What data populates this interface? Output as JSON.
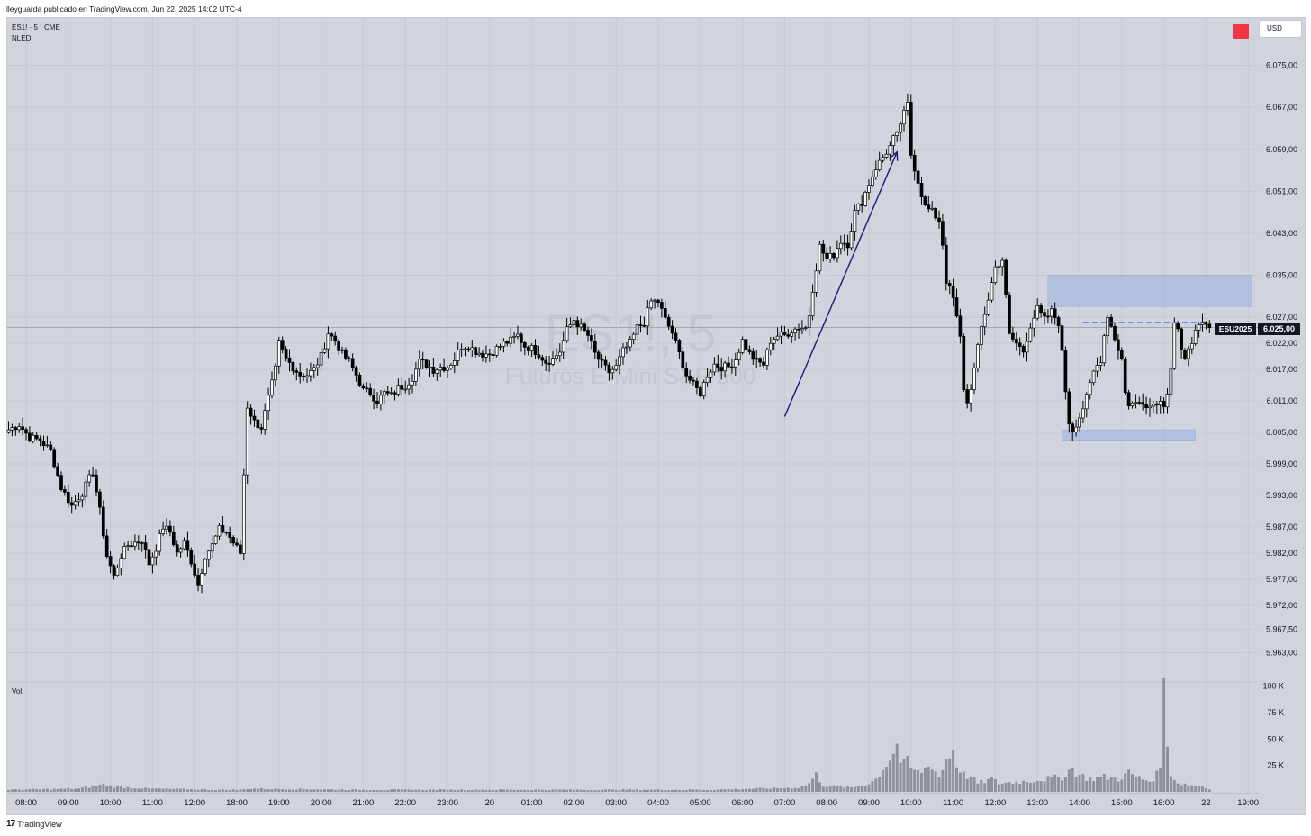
{
  "header": {
    "published_by": "lleyguarda publicado en TradingView.com, Jun 22, 2025 14:02 UTC-4"
  },
  "legend": {
    "symbol_line": "ES1! · 5 · CME",
    "indicator": "NLED",
    "volume_label": "Vol."
  },
  "watermark": {
    "ticker": "ES1!, 5",
    "name": "Futuros E-Mini S&P 500"
  },
  "controls": {
    "currency": "USD",
    "alert_color": "#f23645"
  },
  "price_labels": {
    "symbol": "ESU2025",
    "last": "6.025,00"
  },
  "footer": {
    "brand": "TradingView"
  },
  "chart_data": {
    "type": "candlestick",
    "interval": "5",
    "last_price": 6025.0,
    "y_axis": {
      "ticks": [
        {
          "value": 6075.0,
          "label": "6.075,00"
        },
        {
          "value": 6067.0,
          "label": "6.067,00"
        },
        {
          "value": 6059.0,
          "label": "6.059,00"
        },
        {
          "value": 6051.0,
          "label": "6.051,00"
        },
        {
          "value": 6043.0,
          "label": "6.043,00"
        },
        {
          "value": 6035.0,
          "label": "6.035,00"
        },
        {
          "value": 6027.0,
          "label": "6.027,00"
        },
        {
          "value": 6022.0,
          "label": "6.022,00"
        },
        {
          "value": 6017.0,
          "label": "6.017,00"
        },
        {
          "value": 6011.0,
          "label": "6.011,00"
        },
        {
          "value": 6005.0,
          "label": "6.005,00"
        },
        {
          "value": 5999.0,
          "label": "5.999,00"
        },
        {
          "value": 5993.0,
          "label": "5.993,00"
        },
        {
          "value": 5987.0,
          "label": "5.987,00"
        },
        {
          "value": 5982.0,
          "label": "5.982,00"
        },
        {
          "value": 5977.0,
          "label": "5.977,00"
        },
        {
          "value": 5972.0,
          "label": "5.972,00"
        },
        {
          "value": 5967.5,
          "label": "5.967,50"
        },
        {
          "value": 5963.0,
          "label": "5.963,00"
        }
      ]
    },
    "volume_axis": {
      "ticks": [
        {
          "value": 100,
          "label": "100 K"
        },
        {
          "value": 75,
          "label": "75 K"
        },
        {
          "value": 50,
          "label": "50 K"
        },
        {
          "value": 25,
          "label": "25 K"
        }
      ]
    },
    "x_axis": {
      "ticks": [
        {
          "bar": 5,
          "label": "08:00"
        },
        {
          "bar": 17,
          "label": "09:00"
        },
        {
          "bar": 29,
          "label": "10:00"
        },
        {
          "bar": 41,
          "label": "11:00"
        },
        {
          "bar": 53,
          "label": "12:00"
        },
        {
          "bar": 65,
          "label": "18:00"
        },
        {
          "bar": 77,
          "label": "19:00"
        },
        {
          "bar": 89,
          "label": "20:00"
        },
        {
          "bar": 101,
          "label": "21:00"
        },
        {
          "bar": 113,
          "label": "22:00"
        },
        {
          "bar": 125,
          "label": "23:00"
        },
        {
          "bar": 137,
          "label": "20"
        },
        {
          "bar": 149,
          "label": "01:00"
        },
        {
          "bar": 161,
          "label": "02:00"
        },
        {
          "bar": 173,
          "label": "03:00"
        },
        {
          "bar": 185,
          "label": "04:00"
        },
        {
          "bar": 197,
          "label": "05:00"
        },
        {
          "bar": 209,
          "label": "06:00"
        },
        {
          "bar": 221,
          "label": "07:00"
        },
        {
          "bar": 233,
          "label": "08:00"
        },
        {
          "bar": 245,
          "label": "09:00"
        },
        {
          "bar": 257,
          "label": "10:00"
        },
        {
          "bar": 269,
          "label": "11:00"
        },
        {
          "bar": 281,
          "label": "12:00"
        },
        {
          "bar": 293,
          "label": "13:00"
        },
        {
          "bar": 305,
          "label": "14:00"
        },
        {
          "bar": 317,
          "label": "15:00"
        },
        {
          "bar": 329,
          "label": "16:00"
        },
        {
          "bar": 341,
          "label": "22"
        },
        {
          "bar": 353,
          "label": "19:00"
        }
      ]
    },
    "close_anchors": [
      [
        0,
        6005.5
      ],
      [
        3,
        6006.5
      ],
      [
        6,
        6004.0
      ],
      [
        9,
        6003.5
      ],
      [
        12,
        6001.5
      ],
      [
        15,
        5994.5
      ],
      [
        18,
        5991.0
      ],
      [
        21,
        5993.5
      ],
      [
        24,
        5997.5
      ],
      [
        26,
        5990.0
      ],
      [
        28,
        5981.5
      ],
      [
        30,
        5977.5
      ],
      [
        32,
        5981.5
      ],
      [
        34,
        5983.5
      ],
      [
        36,
        5984.0
      ],
      [
        38,
        5984.5
      ],
      [
        40,
        5980.0
      ],
      [
        42,
        5983.0
      ],
      [
        44,
        5987.0
      ],
      [
        46,
        5986.0
      ],
      [
        48,
        5982.0
      ],
      [
        50,
        5984.0
      ],
      [
        52,
        5980.5
      ],
      [
        54,
        5976.0
      ],
      [
        56,
        5981.5
      ],
      [
        58,
        5983.5
      ],
      [
        60,
        5986.5
      ],
      [
        62,
        5986.0
      ],
      [
        64,
        5984.0
      ],
      [
        66,
        5982.0
      ],
      [
        67,
        5997.0
      ],
      [
        68,
        6010.0
      ],
      [
        70,
        6007.0
      ],
      [
        72,
        6006.0
      ],
      [
        74,
        6011.5
      ],
      [
        76,
        6017.0
      ],
      [
        77,
        6022.0
      ],
      [
        79,
        6019.0
      ],
      [
        81,
        6017.5
      ],
      [
        83,
        6016.0
      ],
      [
        85,
        6016.0
      ],
      [
        87,
        6017.0
      ],
      [
        89,
        6019.5
      ],
      [
        91,
        6024.0
      ],
      [
        93,
        6022.5
      ],
      [
        95,
        6020.0
      ],
      [
        97,
        6018.5
      ],
      [
        99,
        6016.0
      ],
      [
        101,
        6013.0
      ],
      [
        103,
        6012.5
      ],
      [
        105,
        6011.0
      ],
      [
        107,
        6012.5
      ],
      [
        109,
        6012.0
      ],
      [
        111,
        6013.5
      ],
      [
        113,
        6014.0
      ],
      [
        115,
        6015.5
      ],
      [
        117,
        6018.5
      ],
      [
        119,
        6018.0
      ],
      [
        121,
        6017.0
      ],
      [
        123,
        6017.5
      ],
      [
        125,
        6017.5
      ],
      [
        127,
        6019.0
      ],
      [
        129,
        6021.5
      ],
      [
        131,
        6021.5
      ],
      [
        133,
        6020.5
      ],
      [
        135,
        6020.0
      ],
      [
        137,
        6020.0
      ],
      [
        139,
        6021.0
      ],
      [
        141,
        6022.0
      ],
      [
        143,
        6022.5
      ],
      [
        145,
        6023.5
      ],
      [
        147,
        6021.5
      ],
      [
        149,
        6021.0
      ],
      [
        151,
        6020.0
      ],
      [
        153,
        6018.5
      ],
      [
        155,
        6019.0
      ],
      [
        157,
        6020.5
      ],
      [
        159,
        6024.5
      ],
      [
        161,
        6026.5
      ],
      [
        163,
        6025.0
      ],
      [
        165,
        6023.5
      ],
      [
        167,
        6020.0
      ],
      [
        169,
        6018.0
      ],
      [
        171,
        6016.5
      ],
      [
        173,
        6017.5
      ],
      [
        175,
        6020.5
      ],
      [
        177,
        6022.0
      ],
      [
        179,
        6025.0
      ],
      [
        181,
        6026.0
      ],
      [
        183,
        6030.0
      ],
      [
        185,
        6030.0
      ],
      [
        187,
        6026.5
      ],
      [
        189,
        6024.0
      ],
      [
        191,
        6020.0
      ],
      [
        193,
        6016.0
      ],
      [
        195,
        6014.0
      ],
      [
        197,
        6012.5
      ],
      [
        199,
        6016.0
      ],
      [
        201,
        6018.0
      ],
      [
        203,
        6017.5
      ],
      [
        205,
        6017.5
      ],
      [
        207,
        6019.0
      ],
      [
        209,
        6022.5
      ],
      [
        211,
        6020.0
      ],
      [
        213,
        6018.5
      ],
      [
        215,
        6018.0
      ],
      [
        217,
        6022.5
      ],
      [
        219,
        6023.5
      ],
      [
        221,
        6023.5
      ],
      [
        223,
        6024.5
      ],
      [
        225,
        6025.0
      ],
      [
        227,
        6025.0
      ],
      [
        228,
        6027.5
      ],
      [
        229,
        6032.5
      ],
      [
        231,
        6040.5
      ],
      [
        233,
        6038.0
      ],
      [
        235,
        6039.0
      ],
      [
        237,
        6041.5
      ],
      [
        239,
        6041.0
      ],
      [
        241,
        6047.0
      ],
      [
        243,
        6049.0
      ],
      [
        245,
        6052.5
      ],
      [
        247,
        6055.5
      ],
      [
        249,
        6057.5
      ],
      [
        251,
        6059.5
      ],
      [
        252,
        6061.0
      ],
      [
        253,
        6061.5
      ],
      [
        254,
        6064.0
      ],
      [
        256,
        6067.5
      ],
      [
        257,
        6058.0
      ],
      [
        259,
        6053.0
      ],
      [
        261,
        6048.0
      ],
      [
        263,
        6047.0
      ],
      [
        265,
        6045.5
      ],
      [
        266,
        6041.0
      ],
      [
        267,
        6034.0
      ],
      [
        269,
        6030.5
      ],
      [
        271,
        6023.0
      ],
      [
        272,
        6013.5
      ],
      [
        273,
        6010.5
      ],
      [
        275,
        6017.0
      ],
      [
        277,
        6025.0
      ],
      [
        279,
        6030.5
      ],
      [
        281,
        6036.5
      ],
      [
        283,
        6038.0
      ],
      [
        285,
        6023.5
      ],
      [
        287,
        6022.0
      ],
      [
        289,
        6020.5
      ],
      [
        291,
        6025.5
      ],
      [
        293,
        6028.5
      ],
      [
        295,
        6026.5
      ],
      [
        297,
        6028.0
      ],
      [
        299,
        6026.0
      ],
      [
        300,
        6020.0
      ],
      [
        301,
        6013.0
      ],
      [
        302,
        6007.0
      ],
      [
        303,
        6005.5
      ],
      [
        305,
        6008.0
      ],
      [
        307,
        6011.5
      ],
      [
        309,
        6016.5
      ],
      [
        311,
        6019.0
      ],
      [
        312,
        6023.5
      ],
      [
        313,
        6027.5
      ],
      [
        315,
        6023.0
      ],
      [
        317,
        6019.0
      ],
      [
        318,
        6012.5
      ],
      [
        319,
        6010.5
      ],
      [
        321,
        6010.5
      ],
      [
        323,
        6011.0
      ],
      [
        325,
        6010.0
      ],
      [
        327,
        6011.0
      ],
      [
        329,
        6010.5
      ],
      [
        330,
        6013.0
      ],
      [
        331,
        6017.5
      ],
      [
        332,
        6026.0
      ],
      [
        333,
        6024.5
      ],
      [
        334,
        6020.0
      ],
      [
        335,
        6018.5
      ],
      [
        336,
        6021.5
      ],
      [
        338,
        6024.0
      ],
      [
        340,
        6025.5
      ],
      [
        342,
        6025.0
      ]
    ],
    "gaps": [
      {
        "from": 6005.0,
        "to": 6004.0
      }
    ],
    "annotations": {
      "supply_zone": {
        "from_bar": 296,
        "to_bar": 354,
        "top": 6035.0,
        "bottom": 6029.0
      },
      "demand_zone": {
        "from_bar": 300,
        "to_bar": 338,
        "top": 6005.5,
        "bottom": 6003.5
      },
      "level_high": {
        "from_bar": 306,
        "to_bar": 340,
        "value": 6026.0
      },
      "level_low": {
        "from_bar": 298,
        "to_bar": 349,
        "value": 6019.0
      },
      "trend_arrow": {
        "from_bar": 221,
        "from_value": 6008.0,
        "to_bar": 253,
        "to_value": 6058.5
      }
    },
    "volume": [
      [
        0,
        2
      ],
      [
        20,
        3
      ],
      [
        27,
        7
      ],
      [
        30,
        5
      ],
      [
        40,
        3
      ],
      [
        60,
        2
      ],
      [
        66,
        2
      ],
      [
        68,
        3
      ],
      [
        100,
        2
      ],
      [
        150,
        2
      ],
      [
        200,
        2
      ],
      [
        225,
        4
      ],
      [
        228,
        8
      ],
      [
        230,
        16
      ],
      [
        232,
        6
      ],
      [
        240,
        4
      ],
      [
        245,
        8
      ],
      [
        247,
        12
      ],
      [
        249,
        22
      ],
      [
        251,
        32
      ],
      [
        252,
        38
      ],
      [
        253,
        44
      ],
      [
        254,
        30
      ],
      [
        255,
        25
      ],
      [
        256,
        28
      ],
      [
        257,
        22
      ],
      [
        259,
        18
      ],
      [
        261,
        22
      ],
      [
        263,
        26
      ],
      [
        265,
        14
      ],
      [
        267,
        30
      ],
      [
        268,
        36
      ],
      [
        269,
        40
      ],
      [
        270,
        26
      ],
      [
        271,
        22
      ],
      [
        272,
        16
      ],
      [
        274,
        14
      ],
      [
        276,
        8
      ],
      [
        280,
        12
      ],
      [
        282,
        8
      ],
      [
        290,
        10
      ],
      [
        300,
        14
      ],
      [
        302,
        20
      ],
      [
        303,
        22
      ],
      [
        305,
        16
      ],
      [
        308,
        12
      ],
      [
        312,
        14
      ],
      [
        316,
        12
      ],
      [
        319,
        18
      ],
      [
        321,
        14
      ],
      [
        325,
        10
      ],
      [
        327,
        16
      ],
      [
        328,
        30
      ],
      [
        329,
        93
      ],
      [
        330,
        42
      ],
      [
        331,
        18
      ],
      [
        333,
        8
      ],
      [
        336,
        7
      ],
      [
        340,
        5
      ],
      [
        342,
        3
      ]
    ]
  }
}
